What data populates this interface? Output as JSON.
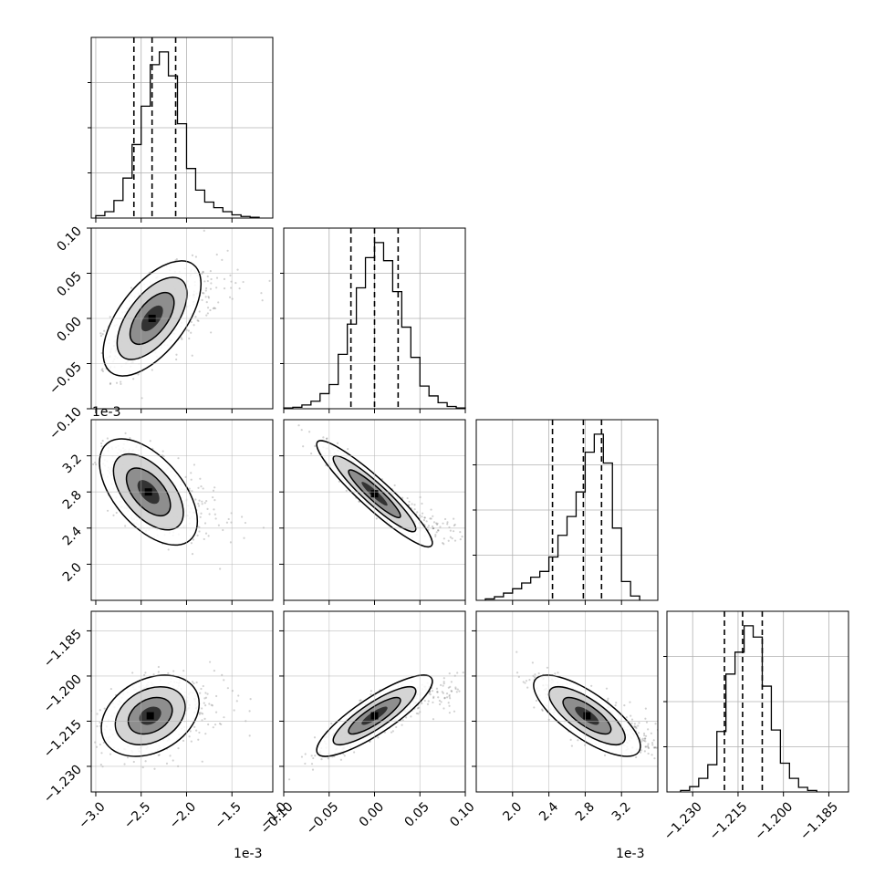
{
  "chart_data": {
    "type": "corner",
    "grid": true,
    "parameters": [
      {
        "index": 0,
        "range": [
          -3.05,
          -1.05
        ],
        "ticks": [
          -3.0,
          -2.5,
          -2.0,
          -1.5,
          -1.0
        ],
        "tick_labels": [
          "−3.0",
          "−2.5",
          "−2.0",
          "−1.5",
          "−1.0"
        ],
        "offset": "1e-3",
        "quantiles": [
          -2.58,
          -2.38,
          -2.12
        ]
      },
      {
        "index": 1,
        "range": [
          -0.1,
          0.1
        ],
        "ticks": [
          -0.1,
          -0.05,
          0.0,
          0.05,
          0.1
        ],
        "tick_labels": [
          "−0.10",
          "−0.05",
          "0.00",
          "0.05",
          "0.10"
        ],
        "offset": "",
        "quantiles": [
          -0.026,
          0.0,
          0.026
        ]
      },
      {
        "index": 2,
        "range": [
          1.6,
          3.6
        ],
        "ticks": [
          2.0,
          2.4,
          2.8,
          3.2
        ],
        "tick_labels": [
          "2.0",
          "2.4",
          "2.8",
          "3.2"
        ],
        "offset": "1e-3",
        "quantiles": [
          2.44,
          2.78,
          2.98
        ]
      },
      {
        "index": 3,
        "range": [
          -1.2385,
          -1.1785
        ],
        "ticks": [
          -1.23,
          -1.215,
          -1.2,
          -1.185
        ],
        "tick_labels": [
          "−1.230",
          "−1.215",
          "−1.200",
          "−1.185"
        ],
        "offset": "",
        "quantiles": [
          -1.2195,
          -1.2135,
          -1.207
        ]
      }
    ],
    "histograms": [
      {
        "param": 0,
        "bins": [
          -3.0,
          -2.9,
          -2.8,
          -2.7,
          -2.6,
          -2.5,
          -2.4,
          -2.3,
          -2.2,
          -2.1,
          -2.0,
          -1.9,
          -1.8,
          -1.7,
          -1.6,
          -1.5,
          -1.4,
          -1.3,
          -1.2
        ],
        "counts": [
          3,
          8,
          22,
          50,
          92,
          140,
          192,
          208,
          178,
          118,
          62,
          35,
          20,
          13,
          8,
          4,
          2,
          1
        ]
      },
      {
        "param": 1,
        "bins": [
          -0.1,
          -0.09,
          -0.08,
          -0.07,
          -0.06,
          -0.05,
          -0.04,
          -0.03,
          -0.02,
          -0.01,
          0.0,
          0.01,
          0.02,
          0.03,
          0.04,
          0.05,
          0.06,
          0.07,
          0.08,
          0.09,
          0.1
        ],
        "counts": [
          1,
          2,
          5,
          10,
          20,
          32,
          72,
          112,
          160,
          200,
          220,
          196,
          155,
          108,
          68,
          30,
          17,
          8,
          3,
          1
        ]
      },
      {
        "param": 2,
        "bins": [
          1.7,
          1.8,
          1.9,
          2.0,
          2.1,
          2.2,
          2.3,
          2.4,
          2.5,
          2.6,
          2.7,
          2.8,
          2.9,
          3.0,
          3.1,
          3.2,
          3.3,
          3.4
        ],
        "counts": [
          2,
          5,
          10,
          16,
          24,
          32,
          40,
          60,
          90,
          116,
          150,
          205,
          230,
          190,
          100,
          26,
          6
        ]
      },
      {
        "param": 3,
        "bins": [
          -1.234,
          -1.231,
          -1.228,
          -1.225,
          -1.222,
          -1.219,
          -1.216,
          -1.213,
          -1.21,
          -1.207,
          -1.204,
          -1.201,
          -1.198,
          -1.195,
          -1.192,
          -1.189
        ],
        "counts": [
          2,
          7,
          18,
          36,
          80,
          156,
          185,
          220,
          205,
          140,
          82,
          38,
          18,
          6,
          2
        ]
      }
    ],
    "scatter_panels": [
      {
        "x": 0,
        "y": 1,
        "center": [
          -2.38,
          0.0
        ],
        "sigma": [
          0.22,
          0.026
        ],
        "rho": 0.6
      },
      {
        "x": 0,
        "y": 2,
        "center": [
          -2.42,
          2.8
        ],
        "sigma": [
          0.22,
          0.24
        ],
        "rho": -0.55
      },
      {
        "x": 1,
        "y": 2,
        "center": [
          0.0,
          2.78
        ],
        "sigma": [
          0.026,
          0.24
        ],
        "rho": -0.93
      },
      {
        "x": 0,
        "y": 3,
        "center": [
          -2.4,
          -1.2132
        ],
        "sigma": [
          0.22,
          0.0055
        ],
        "rho": 0.3
      },
      {
        "x": 1,
        "y": 3,
        "center": [
          0.0,
          -1.2132
        ],
        "sigma": [
          0.026,
          0.0055
        ],
        "rho": 0.85
      },
      {
        "x": 2,
        "y": 3,
        "center": [
          2.82,
          -1.2132
        ],
        "sigma": [
          0.24,
          0.0055
        ],
        "rho": -0.75
      }
    ]
  }
}
